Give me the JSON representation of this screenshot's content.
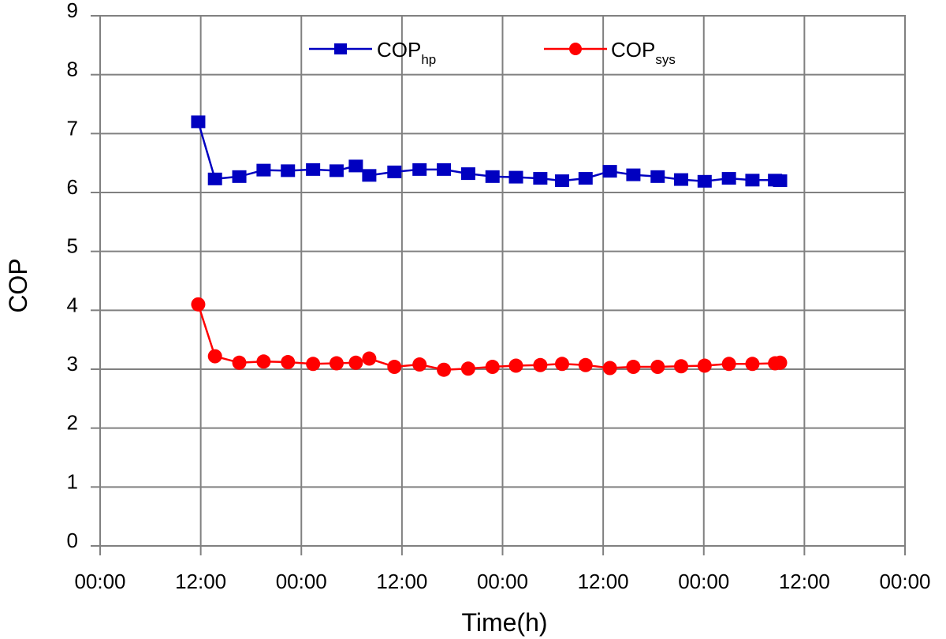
{
  "chart_data": {
    "type": "line",
    "title": "",
    "xlabel": "Time(h)",
    "ylabel": "COP",
    "grid": true,
    "legend_placement": "top-center",
    "x_tick_labels": [
      "00:00",
      "12:00",
      "00:00",
      "12:00",
      "00:00",
      "12:00",
      "00:00",
      "12:00",
      "00:00"
    ],
    "x_tick_hours": [
      0,
      12,
      24,
      36,
      48,
      60,
      72,
      84,
      96
    ],
    "xlim": [
      0,
      96
    ],
    "ylim": [
      0,
      9
    ],
    "y_ticks": [
      0,
      1,
      2,
      3,
      4,
      5,
      6,
      7,
      8,
      9
    ],
    "series": [
      {
        "name": "COP",
        "name_subscript": "hp",
        "color": "#0000c0",
        "marker": "square",
        "points": [
          [
            11.7,
            7.2
          ],
          [
            13.7,
            6.23
          ],
          [
            16.6,
            6.27
          ],
          [
            19.5,
            6.38
          ],
          [
            22.4,
            6.37
          ],
          [
            25.4,
            6.39
          ],
          [
            28.2,
            6.37
          ],
          [
            30.5,
            6.45
          ],
          [
            32.1,
            6.29
          ],
          [
            35.1,
            6.35
          ],
          [
            38.1,
            6.39
          ],
          [
            41.0,
            6.39
          ],
          [
            43.9,
            6.32
          ],
          [
            46.8,
            6.27
          ],
          [
            49.6,
            6.26
          ],
          [
            52.5,
            6.24
          ],
          [
            55.1,
            6.2
          ],
          [
            57.9,
            6.24
          ],
          [
            60.8,
            6.36
          ],
          [
            63.6,
            6.3
          ],
          [
            66.5,
            6.27
          ],
          [
            69.3,
            6.22
          ],
          [
            72.1,
            6.19
          ],
          [
            75.0,
            6.24
          ],
          [
            77.8,
            6.21
          ],
          [
            80.5,
            6.21
          ],
          [
            81.1,
            6.2
          ]
        ]
      },
      {
        "name": "COP",
        "name_subscript": "sys",
        "color": "#ff0000",
        "marker": "circle",
        "points": [
          [
            11.7,
            4.1
          ],
          [
            13.7,
            3.22
          ],
          [
            16.6,
            3.11
          ],
          [
            19.5,
            3.13
          ],
          [
            22.4,
            3.12
          ],
          [
            25.4,
            3.09
          ],
          [
            28.2,
            3.1
          ],
          [
            30.5,
            3.11
          ],
          [
            32.1,
            3.18
          ],
          [
            35.1,
            3.04
          ],
          [
            38.1,
            3.08
          ],
          [
            41.0,
            2.99
          ],
          [
            43.9,
            3.01
          ],
          [
            46.8,
            3.04
          ],
          [
            49.6,
            3.06
          ],
          [
            52.5,
            3.07
          ],
          [
            55.1,
            3.09
          ],
          [
            57.9,
            3.07
          ],
          [
            60.8,
            3.02
          ],
          [
            63.6,
            3.04
          ],
          [
            66.5,
            3.04
          ],
          [
            69.3,
            3.05
          ],
          [
            72.1,
            3.06
          ],
          [
            75.0,
            3.09
          ],
          [
            77.8,
            3.09
          ],
          [
            80.5,
            3.1
          ],
          [
            81.1,
            3.11
          ]
        ]
      }
    ]
  }
}
